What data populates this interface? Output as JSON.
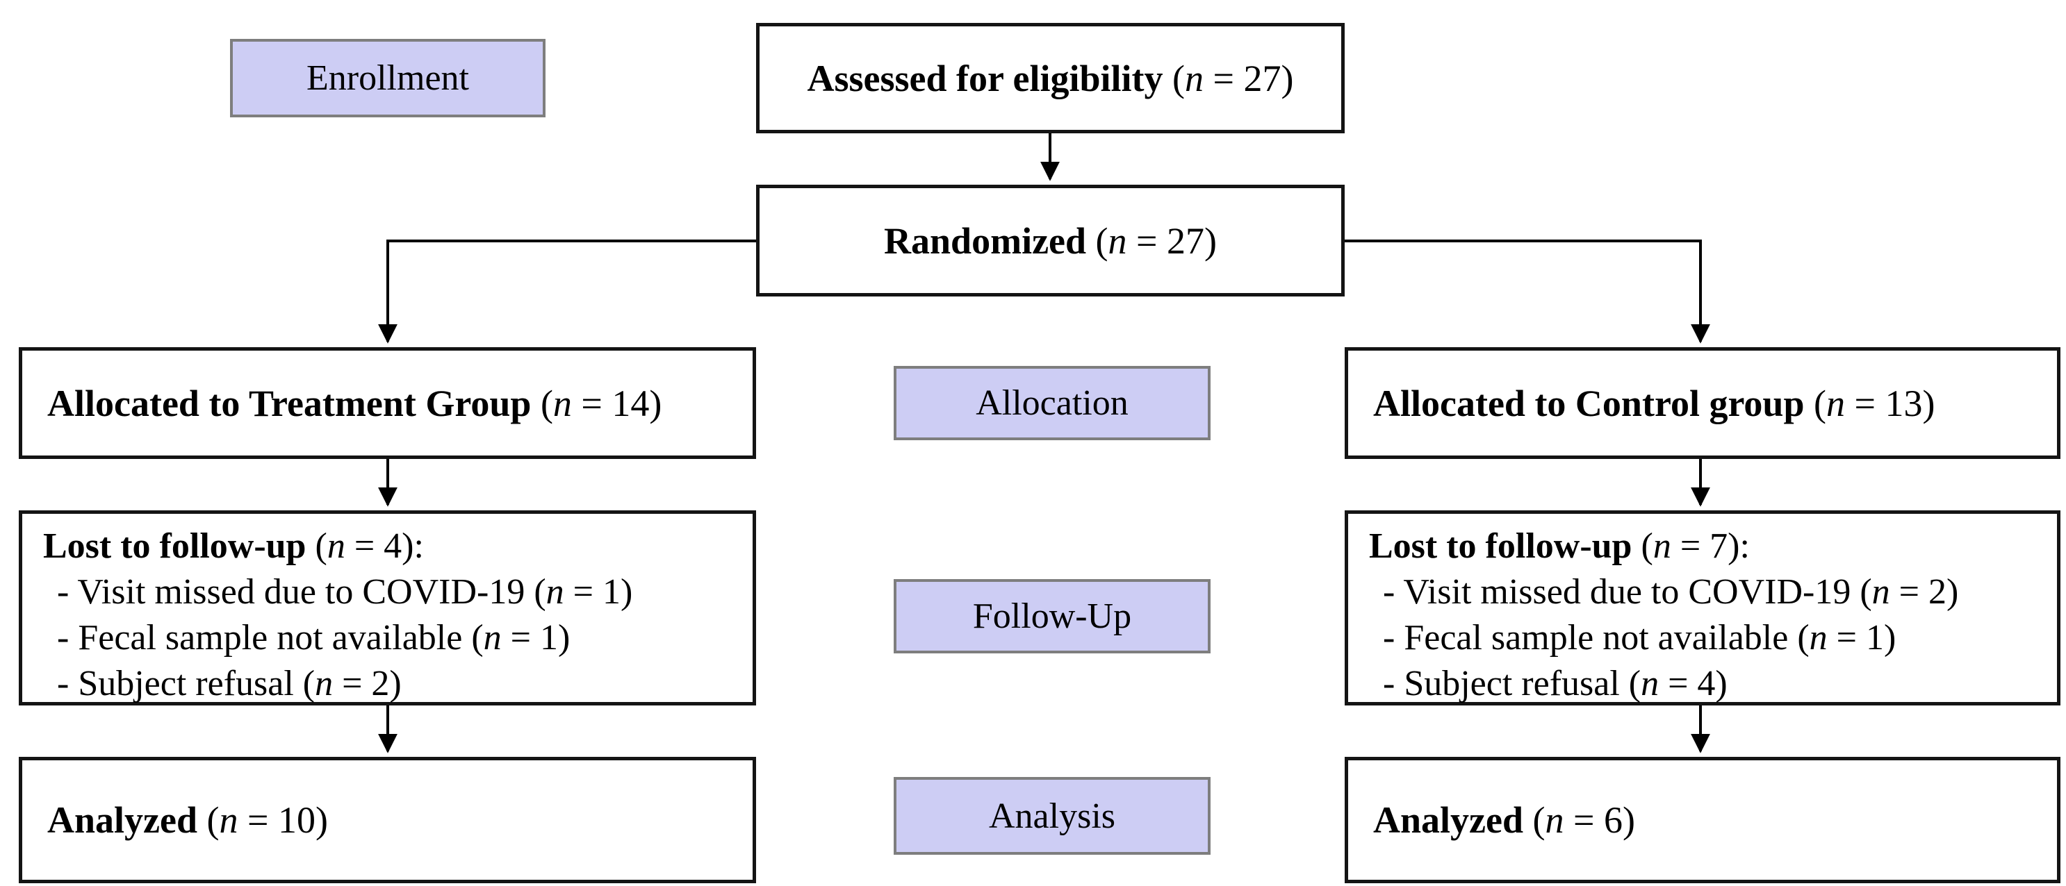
{
  "colors": {
    "badge_fill": "#cdcdf4",
    "badge_border": "#7e7e7e",
    "box_border": "#141414",
    "text": "#000000",
    "background": "#ffffff"
  },
  "stages": {
    "enrollment": "Enrollment",
    "allocation": "Allocation",
    "followup": "Follow-Up",
    "analysis": "Analysis"
  },
  "boxes": {
    "assessed": {
      "parts": [
        {
          "t": "Assessed for eligibility ",
          "s": "b"
        },
        {
          "t": "(",
          "s": ""
        },
        {
          "t": "n",
          "s": "i"
        },
        {
          "t": " = 27)",
          "s": ""
        }
      ]
    },
    "randomized": {
      "parts": [
        {
          "t": "Randomized ",
          "s": "b"
        },
        {
          "t": "(",
          "s": ""
        },
        {
          "t": "n",
          "s": "i"
        },
        {
          "t": " = 27)",
          "s": ""
        }
      ]
    },
    "allocated_treatment": {
      "parts": [
        {
          "t": "Allocated to Treatment Group ",
          "s": "b"
        },
        {
          "t": "(",
          "s": ""
        },
        {
          "t": "n",
          "s": "i"
        },
        {
          "t": " = 14)",
          "s": ""
        }
      ]
    },
    "allocated_control": {
      "parts": [
        {
          "t": "Allocated to Control group ",
          "s": "b"
        },
        {
          "t": "(",
          "s": ""
        },
        {
          "t": "n",
          "s": "i"
        },
        {
          "t": " = 13)",
          "s": ""
        }
      ]
    },
    "lost_treatment": {
      "lines": [
        [
          {
            "t": "Lost to follow-up ",
            "s": "b"
          },
          {
            "t": "(",
            "s": ""
          },
          {
            "t": "n",
            "s": "i"
          },
          {
            "t": " = 4):",
            "s": ""
          }
        ],
        [
          {
            "t": "- Visit missed due to COVID-19 ",
            "s": ""
          },
          {
            "t": "(",
            "s": ""
          },
          {
            "t": "n",
            "s": "i"
          },
          {
            "t": " = 1)",
            "s": ""
          }
        ],
        [
          {
            "t": "- Fecal sample not available ",
            "s": ""
          },
          {
            "t": "(",
            "s": ""
          },
          {
            "t": "n",
            "s": "i"
          },
          {
            "t": " = 1)",
            "s": ""
          }
        ],
        [
          {
            "t": "- Subject refusal ",
            "s": ""
          },
          {
            "t": "(",
            "s": ""
          },
          {
            "t": "n",
            "s": "i"
          },
          {
            "t": " = 2)",
            "s": ""
          }
        ]
      ]
    },
    "lost_control": {
      "lines": [
        [
          {
            "t": "Lost to follow-up ",
            "s": "b"
          },
          {
            "t": "(",
            "s": ""
          },
          {
            "t": "n",
            "s": "i"
          },
          {
            "t": " = 7):",
            "s": ""
          }
        ],
        [
          {
            "t": "- Visit missed due to COVID-19 ",
            "s": ""
          },
          {
            "t": "(",
            "s": ""
          },
          {
            "t": "n",
            "s": "i"
          },
          {
            "t": " = 2)",
            "s": ""
          }
        ],
        [
          {
            "t": "- Fecal sample not available ",
            "s": ""
          },
          {
            "t": "(",
            "s": ""
          },
          {
            "t": "n",
            "s": "i"
          },
          {
            "t": " = 1)",
            "s": ""
          }
        ],
        [
          {
            "t": "- Subject refusal ",
            "s": ""
          },
          {
            "t": "(",
            "s": ""
          },
          {
            "t": "n",
            "s": "i"
          },
          {
            "t": " = 4)",
            "s": ""
          }
        ]
      ]
    },
    "analyzed_treatment": {
      "parts": [
        {
          "t": "Analyzed ",
          "s": "b"
        },
        {
          "t": "(",
          "s": ""
        },
        {
          "t": "n",
          "s": "i"
        },
        {
          "t": " = 10)",
          "s": ""
        }
      ]
    },
    "analyzed_control": {
      "parts": [
        {
          "t": "Analyzed ",
          "s": "b"
        },
        {
          "t": "(",
          "s": ""
        },
        {
          "t": "n",
          "s": "i"
        },
        {
          "t": " = 6)",
          "s": ""
        }
      ]
    }
  }
}
